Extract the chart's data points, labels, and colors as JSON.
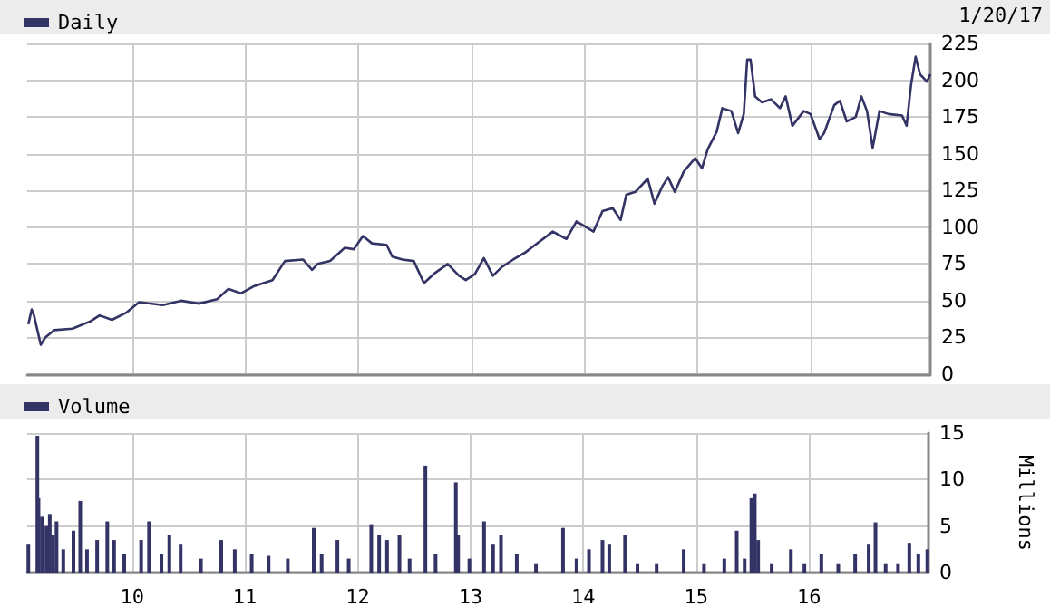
{
  "chart_data": [
    {
      "type": "line",
      "legend": "top left",
      "grid": true,
      "tick_labels": "y",
      "annotations": [
        "1/20/17"
      ],
      "xlim": [
        2009.07,
        2017.06
      ],
      "xticks": [
        {
          "value": 2010,
          "label": null
        },
        {
          "value": 2011,
          "label": null
        },
        {
          "value": 2012,
          "label": null
        },
        {
          "value": 2013,
          "label": null
        },
        {
          "value": 2014,
          "label": null
        },
        {
          "value": 2015,
          "label": null
        },
        {
          "value": 2016,
          "label": null
        }
      ],
      "ylim": [
        0,
        225
      ],
      "yticks": [
        0,
        25,
        50,
        75,
        100,
        125,
        150,
        175,
        200,
        225
      ],
      "x": [
        2009.08,
        2009.11,
        2009.13,
        2009.19,
        2009.23,
        2009.31,
        2009.47,
        2009.63,
        2009.71,
        2009.82,
        2009.95,
        2010.06,
        2010.27,
        2010.43,
        2010.59,
        2010.75,
        2010.85,
        2010.96,
        2011.08,
        2011.24,
        2011.35,
        2011.51,
        2011.59,
        2011.64,
        2011.75,
        2011.88,
        2011.96,
        2012.04,
        2012.12,
        2012.25,
        2012.3,
        2012.39,
        2012.49,
        2012.58,
        2012.68,
        2012.79,
        2012.89,
        2012.95,
        2013.03,
        2013.11,
        2013.19,
        2013.27,
        2013.37,
        2013.48,
        2013.53,
        2013.72,
        2013.84,
        2013.93,
        2014.08,
        2014.16,
        2014.25,
        2014.32,
        2014.37,
        2014.45,
        2014.56,
        2014.62,
        2014.69,
        2014.74,
        2014.8,
        2014.88,
        2014.98,
        2015.04,
        2015.09,
        2015.17,
        2015.22,
        2015.3,
        2015.36,
        2015.41,
        2015.44,
        2015.47,
        2015.51,
        2015.57,
        2015.65,
        2015.73,
        2015.78,
        2015.84,
        2015.94,
        2016.0,
        2016.08,
        2016.12,
        2016.21,
        2016.26,
        2016.32,
        2016.4,
        2016.45,
        2016.5,
        2016.55,
        2016.61,
        2016.69,
        2016.81,
        2016.85,
        2016.89,
        2016.93,
        2016.97,
        2017.03,
        2017.06
      ],
      "series": [
        {
          "name": "Daily",
          "color": "#333366",
          "values": [
            34,
            44,
            40,
            20,
            25,
            30,
            31,
            36,
            40,
            37,
            42,
            49,
            47,
            50,
            48,
            51,
            58,
            55,
            60,
            64,
            77,
            78,
            71,
            75,
            77,
            86,
            85,
            94,
            89,
            88,
            80,
            78,
            77,
            62,
            69,
            75,
            67,
            64,
            68,
            79,
            67,
            73,
            78,
            83,
            86,
            97,
            92,
            104,
            97,
            111,
            113,
            105,
            122,
            124,
            133,
            116,
            128,
            134,
            124,
            138,
            147,
            140,
            153,
            165,
            181,
            179,
            164,
            177,
            214,
            214,
            189,
            185,
            187,
            181,
            189,
            169,
            179,
            177,
            160,
            164,
            183,
            186,
            172,
            175,
            189,
            179,
            154,
            179,
            177,
            176,
            169,
            197,
            216,
            204,
            199,
            204
          ]
        }
      ]
    },
    {
      "type": "bar",
      "legend": "top left",
      "grid": true,
      "ylabel": "Millions",
      "xlim": [
        2009.07,
        2017.06
      ],
      "xticks": [
        {
          "value": 2010,
          "label": "10"
        },
        {
          "value": 2011,
          "label": "11"
        },
        {
          "value": 2012,
          "label": "12"
        },
        {
          "value": 2013,
          "label": "13"
        },
        {
          "value": 2014,
          "label": "14"
        },
        {
          "value": 2015,
          "label": "15"
        },
        {
          "value": 2016,
          "label": "16"
        }
      ],
      "ylim": [
        0,
        15
      ],
      "yticks": [
        0,
        5,
        10,
        15
      ],
      "x": [
        2009.08,
        2009.16,
        2009.17,
        2009.2,
        2009.24,
        2009.27,
        2009.3,
        2009.33,
        2009.39,
        2009.48,
        2009.54,
        2009.6,
        2009.69,
        2009.78,
        2009.84,
        2009.93,
        2010.08,
        2010.15,
        2010.26,
        2010.33,
        2010.43,
        2010.61,
        2010.79,
        2010.91,
        2011.06,
        2011.21,
        2011.38,
        2011.61,
        2011.68,
        2011.82,
        2011.92,
        2012.12,
        2012.19,
        2012.26,
        2012.37,
        2012.46,
        2012.6,
        2012.69,
        2012.87,
        2012.89,
        2012.99,
        2013.12,
        2013.2,
        2013.27,
        2013.41,
        2013.58,
        2013.82,
        2013.94,
        2014.05,
        2014.17,
        2014.23,
        2014.37,
        2014.48,
        2014.65,
        2014.89,
        2015.07,
        2015.25,
        2015.36,
        2015.43,
        2015.49,
        2015.52,
        2015.55,
        2015.67,
        2015.84,
        2015.96,
        2016.11,
        2016.26,
        2016.41,
        2016.53,
        2016.59,
        2016.68,
        2016.79,
        2016.89,
        2016.97,
        2017.05
      ],
      "series": [
        {
          "name": "Volume",
          "color": "#333366",
          "values": [
            3,
            14.7,
            8,
            6,
            5,
            6.3,
            4,
            5.5,
            2.5,
            4.5,
            7.7,
            2.5,
            3.5,
            5.5,
            3.5,
            2,
            3.5,
            5.5,
            2,
            4,
            3,
            1.5,
            3.5,
            2.5,
            2,
            1.8,
            1.5,
            4.8,
            2,
            3.5,
            1.5,
            5.2,
            4,
            3.5,
            4,
            1.5,
            11.5,
            2,
            9.7,
            4,
            1.5,
            5.5,
            3,
            4,
            2,
            1,
            4.8,
            1.5,
            2.5,
            3.5,
            3,
            4,
            1,
            1,
            2.5,
            1,
            1.5,
            4.5,
            1.5,
            8,
            8.5,
            3.5,
            1,
            2.5,
            1,
            2,
            1,
            2,
            3,
            5.4,
            1,
            1,
            3.2,
            2,
            2.5
          ]
        }
      ]
    }
  ]
}
